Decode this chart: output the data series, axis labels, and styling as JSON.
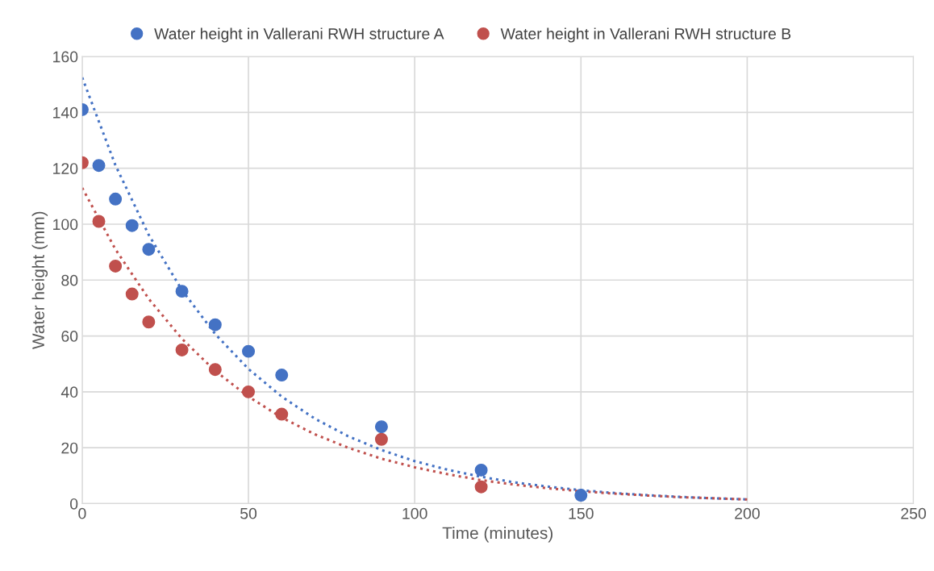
{
  "chart_data": {
    "type": "scatter",
    "xlabel": "Time (minutes)",
    "ylabel": "Water height (mm)",
    "xlim": [
      0,
      250
    ],
    "xticks": [
      0,
      50,
      100,
      150,
      200,
      250
    ],
    "ylim": [
      0,
      160
    ],
    "yticks": [
      0,
      20,
      40,
      60,
      80,
      100,
      120,
      140,
      160
    ],
    "grid": true,
    "legend": "top",
    "marker": "circle",
    "series": [
      {
        "name": "Water height in Vallerani RWH structure A",
        "color": "#4472c4",
        "x": [
          0,
          5,
          10,
          15,
          20,
          30,
          40,
          50,
          60,
          90,
          120,
          150
        ],
        "values": [
          141,
          121,
          109,
          99.5,
          91,
          76,
          64,
          54.5,
          46,
          27.5,
          12,
          3
        ]
      },
      {
        "name": "Water height in Vallerani RWH structure B",
        "color": "#c0504d",
        "x": [
          0,
          5,
          10,
          15,
          20,
          30,
          40,
          50,
          60,
          90,
          120
        ],
        "values": [
          122,
          101,
          85,
          75,
          65,
          55,
          48,
          40,
          32,
          23,
          6
        ]
      },
      {
        "type": "line",
        "line_style": "dotted",
        "marker": "none",
        "color": "#4472c4",
        "x": [
          0,
          10,
          20,
          30,
          40,
          50,
          60,
          70,
          80,
          90,
          100,
          110,
          120,
          130,
          140,
          150,
          160,
          170,
          180,
          190,
          200
        ],
        "values": [
          152.5,
          121.1,
          96.2,
          76.4,
          60.7,
          48.2,
          38.3,
          30.4,
          24.1,
          19.2,
          15.2,
          12.1,
          9.6,
          7.6,
          6.1,
          4.8,
          3.8,
          3.0,
          2.4,
          1.9,
          1.5
        ]
      },
      {
        "type": "line",
        "line_style": "dotted",
        "marker": "none",
        "color": "#c0504d",
        "x": [
          0,
          10,
          20,
          30,
          40,
          50,
          60,
          70,
          80,
          90,
          100,
          110,
          120,
          130,
          140,
          150,
          160,
          170,
          180,
          190,
          200
        ],
        "values": [
          113,
          91.0,
          73.3,
          59.0,
          47.5,
          38.3,
          30.8,
          24.8,
          20.0,
          16.1,
          13.0,
          10.5,
          8.4,
          6.8,
          5.5,
          4.4,
          3.6,
          2.9,
          2.3,
          1.9,
          1.5
        ]
      }
    ]
  }
}
